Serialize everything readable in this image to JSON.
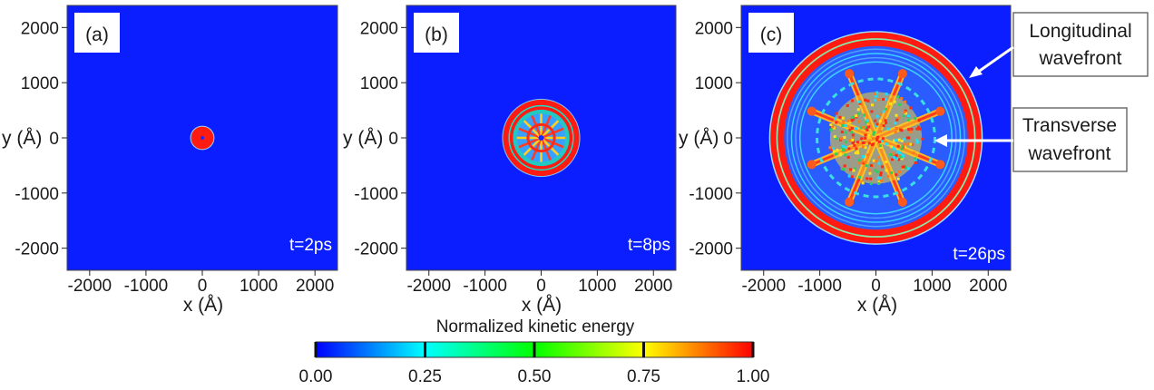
{
  "chart_data": {
    "type": "heatmap",
    "panels": [
      {
        "label": "(a)",
        "time": "t=2ps",
        "xlabel": "x (Å)",
        "ylabel": "y (Å)",
        "xlim": [
          -2400,
          2400
        ],
        "ylim": [
          -2400,
          2400
        ],
        "xticks": [
          -2000,
          -1000,
          0,
          1000,
          2000
        ],
        "yticks": [
          2000,
          1000,
          0,
          -1000,
          -2000
        ],
        "features": {
          "central_disk_radius": 200
        }
      },
      {
        "label": "(b)",
        "time": "t=8ps",
        "xlabel": "x (Å)",
        "ylabel": "y (Å)",
        "xlim": [
          -2400,
          2400
        ],
        "ylim": [
          -2400,
          2400
        ],
        "xticks": [
          -2000,
          -1000,
          0,
          1000,
          2000
        ],
        "yticks": [
          2000,
          1000,
          0,
          -1000,
          -2000
        ],
        "features": {
          "outer_ring_radius": 680,
          "inner_ring_radius": 430
        }
      },
      {
        "label": "(c)",
        "time": "t=26ps",
        "xlabel": "x (Å)",
        "ylabel": "y (Å)",
        "xlim": [
          -2400,
          2400
        ],
        "ylim": [
          -2400,
          2400
        ],
        "xticks": [
          -2000,
          -1000,
          0,
          1000,
          2000
        ],
        "yticks": [
          2000,
          1000,
          0,
          -1000,
          -2000
        ],
        "features": {
          "longitudinal_wavefront_radius": 1880,
          "transverse_wavefront_radius": 1050
        }
      }
    ],
    "annotations": [
      {
        "text": [
          "Longitudinal",
          "wavefront"
        ]
      },
      {
        "text": [
          "Transverse",
          "wavefront"
        ]
      }
    ],
    "colorbar": {
      "title": "Normalized kinetic energy",
      "ticks": [
        "0.00",
        "0.25",
        "0.50",
        "0.75",
        "1.00"
      ],
      "range": [
        0,
        1
      ],
      "colormap": [
        "#0000ff",
        "#00ffff",
        "#00ff00",
        "#ffff00",
        "#ff0000"
      ]
    },
    "colors": {
      "background": "#0a1eff",
      "high": "#ff1a12",
      "mid": "#19e0ff"
    }
  }
}
